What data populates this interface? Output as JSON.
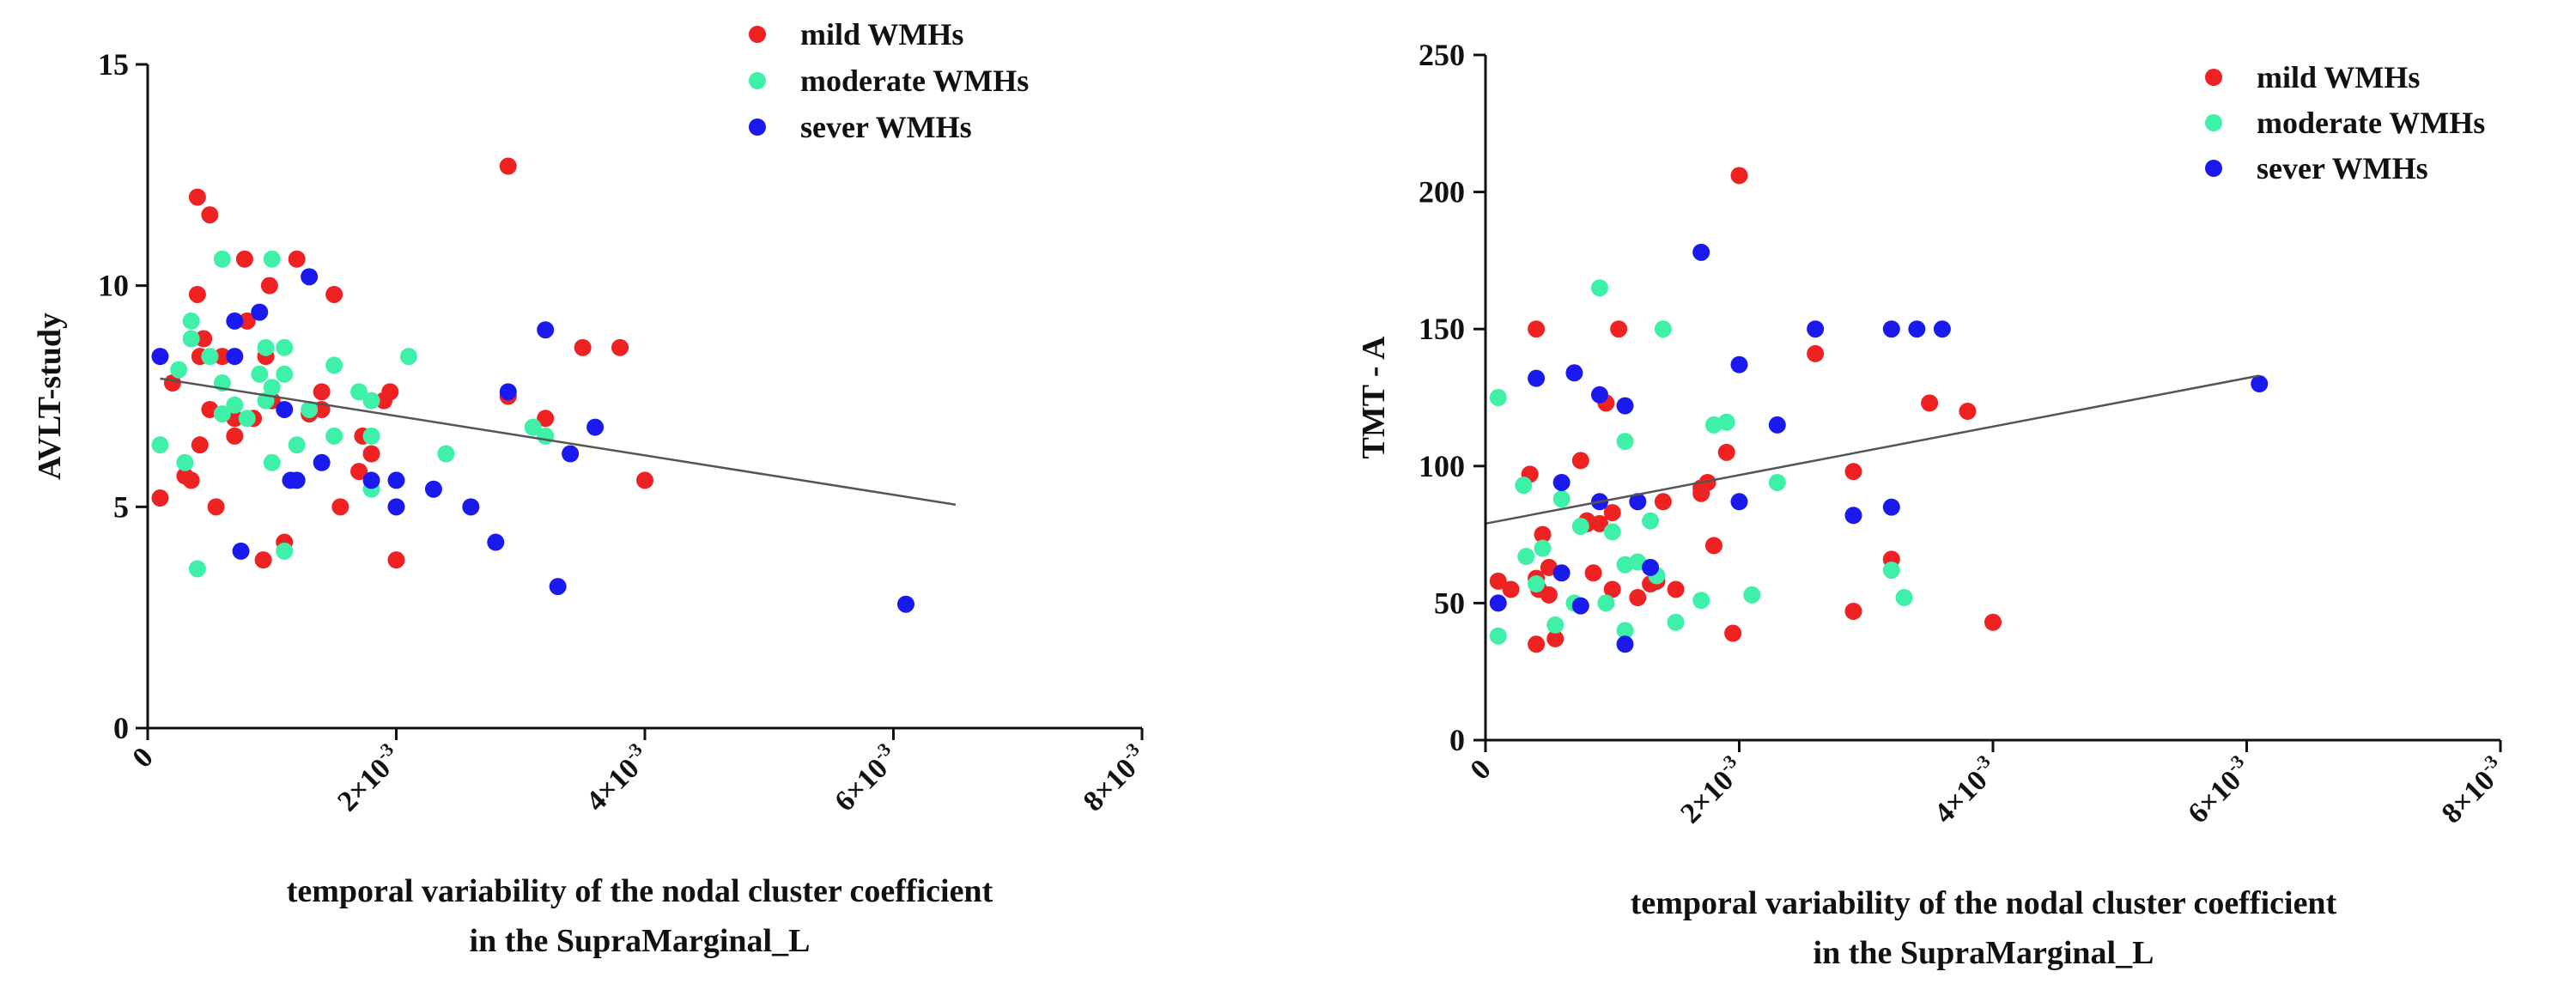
{
  "colors": {
    "mild": "#ee2222",
    "moderate": "#3ff0a8",
    "severe": "#1a1aee",
    "trendline": "#555555"
  },
  "chart_data": [
    {
      "type": "scatter",
      "id": "left",
      "title": "",
      "xlabel": "temporal variability of the nodal cluster coefficient",
      "xlabel2": "in the SupraMarginal_L",
      "ylabel": "AVLT-study",
      "xlim": [
        0,
        0.008
      ],
      "ylim": [
        0,
        15
      ],
      "xticks": [
        {
          "value": 0,
          "base": "0",
          "exp": ""
        },
        {
          "value": 0.002,
          "base": "2×10",
          "exp": "-3"
        },
        {
          "value": 0.004,
          "base": "4×10",
          "exp": "-3"
        },
        {
          "value": 0.006,
          "base": "6×10",
          "exp": "-3"
        },
        {
          "value": 0.008,
          "base": "8×10",
          "exp": "-3"
        }
      ],
      "yticks": [
        0,
        5,
        10,
        15
      ],
      "legend": [
        "mild WMHs",
        "moderate WMHs",
        "sever WMHs"
      ],
      "legend_position": "top-right",
      "trendline": {
        "x": [
          0.0001,
          0.0065
        ],
        "y": [
          7.9,
          5.05
        ]
      },
      "series": [
        {
          "name": "mild WMHs",
          "points": [
            [
              0.0001,
              5.2
            ],
            [
              0.0002,
              7.8
            ],
            [
              0.0003,
              5.7
            ],
            [
              0.00035,
              5.6
            ],
            [
              0.0004,
              12.0
            ],
            [
              0.0004,
              9.8
            ],
            [
              0.00042,
              8.4
            ],
            [
              0.00042,
              6.4
            ],
            [
              0.00045,
              8.8
            ],
            [
              0.0005,
              11.6
            ],
            [
              0.0005,
              7.2
            ],
            [
              0.00055,
              5.0
            ],
            [
              0.0006,
              8.4
            ],
            [
              0.0007,
              7.0
            ],
            [
              0.0007,
              6.6
            ],
            [
              0.00078,
              10.6
            ],
            [
              0.0008,
              9.2
            ],
            [
              0.00085,
              7.0
            ],
            [
              0.00093,
              3.8
            ],
            [
              0.00095,
              8.4
            ],
            [
              0.00098,
              10.0
            ],
            [
              0.001,
              7.4
            ],
            [
              0.0011,
              4.2
            ],
            [
              0.0012,
              10.6
            ],
            [
              0.0013,
              7.1
            ],
            [
              0.0014,
              7.6
            ],
            [
              0.0014,
              7.2
            ],
            [
              0.0015,
              9.8
            ],
            [
              0.00155,
              5.0
            ],
            [
              0.0017,
              5.8
            ],
            [
              0.00173,
              6.6
            ],
            [
              0.0018,
              6.2
            ],
            [
              0.0019,
              7.4
            ],
            [
              0.00195,
              7.6
            ],
            [
              0.002,
              3.8
            ],
            [
              0.0029,
              7.5
            ],
            [
              0.0029,
              12.7
            ],
            [
              0.0032,
              7.0
            ],
            [
              0.0035,
              8.6
            ],
            [
              0.0038,
              8.6
            ],
            [
              0.004,
              5.6
            ]
          ]
        },
        {
          "name": "moderate WMHs",
          "points": [
            [
              0.0001,
              6.4
            ],
            [
              0.00025,
              8.1
            ],
            [
              0.0003,
              6.0
            ],
            [
              0.00035,
              9.2
            ],
            [
              0.00035,
              8.8
            ],
            [
              0.0004,
              3.6
            ],
            [
              0.0005,
              8.4
            ],
            [
              0.0006,
              10.6
            ],
            [
              0.0006,
              7.8
            ],
            [
              0.0006,
              7.1
            ],
            [
              0.0007,
              7.3
            ],
            [
              0.0008,
              7.0
            ],
            [
              0.0009,
              8.0
            ],
            [
              0.00095,
              7.4
            ],
            [
              0.00095,
              8.6
            ],
            [
              0.001,
              6.0
            ],
            [
              0.001,
              10.6
            ],
            [
              0.001,
              7.7
            ],
            [
              0.0011,
              4.0
            ],
            [
              0.0011,
              8.6
            ],
            [
              0.0011,
              8.0
            ],
            [
              0.0012,
              6.4
            ],
            [
              0.0013,
              7.2
            ],
            [
              0.0015,
              8.2
            ],
            [
              0.0015,
              6.6
            ],
            [
              0.0017,
              7.6
            ],
            [
              0.0018,
              7.4
            ],
            [
              0.0018,
              5.4
            ],
            [
              0.0018,
              6.6
            ],
            [
              0.0021,
              8.4
            ],
            [
              0.0024,
              6.2
            ],
            [
              0.0031,
              6.8
            ],
            [
              0.0032,
              6.6
            ]
          ]
        },
        {
          "name": "sever WMHs",
          "points": [
            [
              0.0001,
              8.4
            ],
            [
              0.0007,
              8.4
            ],
            [
              0.0007,
              9.2
            ],
            [
              0.00075,
              4.0
            ],
            [
              0.0009,
              9.4
            ],
            [
              0.0011,
              7.2
            ],
            [
              0.00115,
              5.6
            ],
            [
              0.0012,
              5.6
            ],
            [
              0.0013,
              10.2
            ],
            [
              0.0014,
              6.0
            ],
            [
              0.0018,
              5.6
            ],
            [
              0.002,
              5.6
            ],
            [
              0.002,
              5.0
            ],
            [
              0.0023,
              5.4
            ],
            [
              0.0026,
              5.0
            ],
            [
              0.0028,
              4.2
            ],
            [
              0.0029,
              7.6
            ],
            [
              0.0032,
              9.0
            ],
            [
              0.0033,
              3.2
            ],
            [
              0.0034,
              6.2
            ],
            [
              0.0036,
              6.8
            ],
            [
              0.0061,
              2.8
            ]
          ]
        }
      ]
    },
    {
      "type": "scatter",
      "id": "right",
      "title": "",
      "xlabel": "temporal variability of the nodal cluster coefficient",
      "xlabel2": "in the SupraMarginal_L",
      "ylabel": "TMT - A",
      "xlim": [
        0,
        0.008
      ],
      "ylim": [
        0,
        250
      ],
      "xticks": [
        {
          "value": 0,
          "base": "0",
          "exp": ""
        },
        {
          "value": 0.002,
          "base": "2×10",
          "exp": "-3"
        },
        {
          "value": 0.004,
          "base": "4×10",
          "exp": "-3"
        },
        {
          "value": 0.006,
          "base": "6×10",
          "exp": "-3"
        },
        {
          "value": 0.008,
          "base": "8×10",
          "exp": "-3"
        }
      ],
      "yticks": [
        0,
        50,
        100,
        150,
        200,
        250
      ],
      "legend": [
        "mild WMHs",
        "moderate WMHs",
        "sever WMHs"
      ],
      "legend_position": "top-right",
      "trendline": {
        "x": [
          0.0,
          0.0061
        ],
        "y": [
          79,
          133
        ]
      },
      "series": [
        {
          "name": "mild WMHs",
          "points": [
            [
              0.0001,
              58
            ],
            [
              0.0002,
              55
            ],
            [
              0.00035,
              97
            ],
            [
              0.0004,
              59
            ],
            [
              0.0004,
              150
            ],
            [
              0.0004,
              35
            ],
            [
              0.00042,
              55
            ],
            [
              0.00045,
              75
            ],
            [
              0.0005,
              63
            ],
            [
              0.0005,
              53
            ],
            [
              0.00055,
              37
            ],
            [
              0.00075,
              102
            ],
            [
              0.0008,
              80
            ],
            [
              0.0008,
              79
            ],
            [
              0.00085,
              61
            ],
            [
              0.0009,
              79
            ],
            [
              0.00095,
              123
            ],
            [
              0.001,
              55
            ],
            [
              0.001,
              83
            ],
            [
              0.00105,
              150
            ],
            [
              0.0012,
              52
            ],
            [
              0.0013,
              57
            ],
            [
              0.00135,
              58
            ],
            [
              0.0014,
              87
            ],
            [
              0.0015,
              55
            ],
            [
              0.0017,
              90
            ],
            [
              0.0017,
              92
            ],
            [
              0.00175,
              94
            ],
            [
              0.0018,
              71
            ],
            [
              0.0019,
              105
            ],
            [
              0.00195,
              39
            ],
            [
              0.002,
              206
            ],
            [
              0.0026,
              141
            ],
            [
              0.0029,
              98
            ],
            [
              0.0029,
              47
            ],
            [
              0.0032,
              66
            ],
            [
              0.0035,
              123
            ],
            [
              0.0038,
              120
            ],
            [
              0.004,
              43
            ]
          ]
        },
        {
          "name": "moderate WMHs",
          "points": [
            [
              0.0001,
              38
            ],
            [
              0.0001,
              125
            ],
            [
              0.0003,
              93
            ],
            [
              0.00032,
              67
            ],
            [
              0.0004,
              57
            ],
            [
              0.00045,
              70
            ],
            [
              0.00055,
              42
            ],
            [
              0.0006,
              88
            ],
            [
              0.0007,
              50
            ],
            [
              0.00075,
              78
            ],
            [
              0.0009,
              165
            ],
            [
              0.00095,
              50
            ],
            [
              0.001,
              76
            ],
            [
              0.0011,
              109
            ],
            [
              0.0011,
              64
            ],
            [
              0.0011,
              40
            ],
            [
              0.0012,
              65
            ],
            [
              0.0013,
              80
            ],
            [
              0.00135,
              60
            ],
            [
              0.0014,
              150
            ],
            [
              0.0015,
              43
            ],
            [
              0.0017,
              51
            ],
            [
              0.0018,
              115
            ],
            [
              0.0019,
              116
            ],
            [
              0.0021,
              53
            ],
            [
              0.0023,
              94
            ],
            [
              0.0032,
              62
            ],
            [
              0.0033,
              52
            ]
          ]
        },
        {
          "name": "sever WMHs",
          "points": [
            [
              0.0001,
              50
            ],
            [
              0.0004,
              132
            ],
            [
              0.0006,
              61
            ],
            [
              0.0006,
              94
            ],
            [
              0.0007,
              134
            ],
            [
              0.00075,
              49
            ],
            [
              0.0009,
              126
            ],
            [
              0.0009,
              87
            ],
            [
              0.0011,
              122
            ],
            [
              0.0011,
              35
            ],
            [
              0.0012,
              87
            ],
            [
              0.0013,
              63
            ],
            [
              0.0017,
              178
            ],
            [
              0.002,
              137
            ],
            [
              0.002,
              87
            ],
            [
              0.0023,
              115
            ],
            [
              0.0026,
              150
            ],
            [
              0.0029,
              82
            ],
            [
              0.0032,
              85
            ],
            [
              0.0032,
              150
            ],
            [
              0.0034,
              150
            ],
            [
              0.0036,
              150
            ],
            [
              0.0061,
              130
            ]
          ]
        }
      ]
    }
  ]
}
